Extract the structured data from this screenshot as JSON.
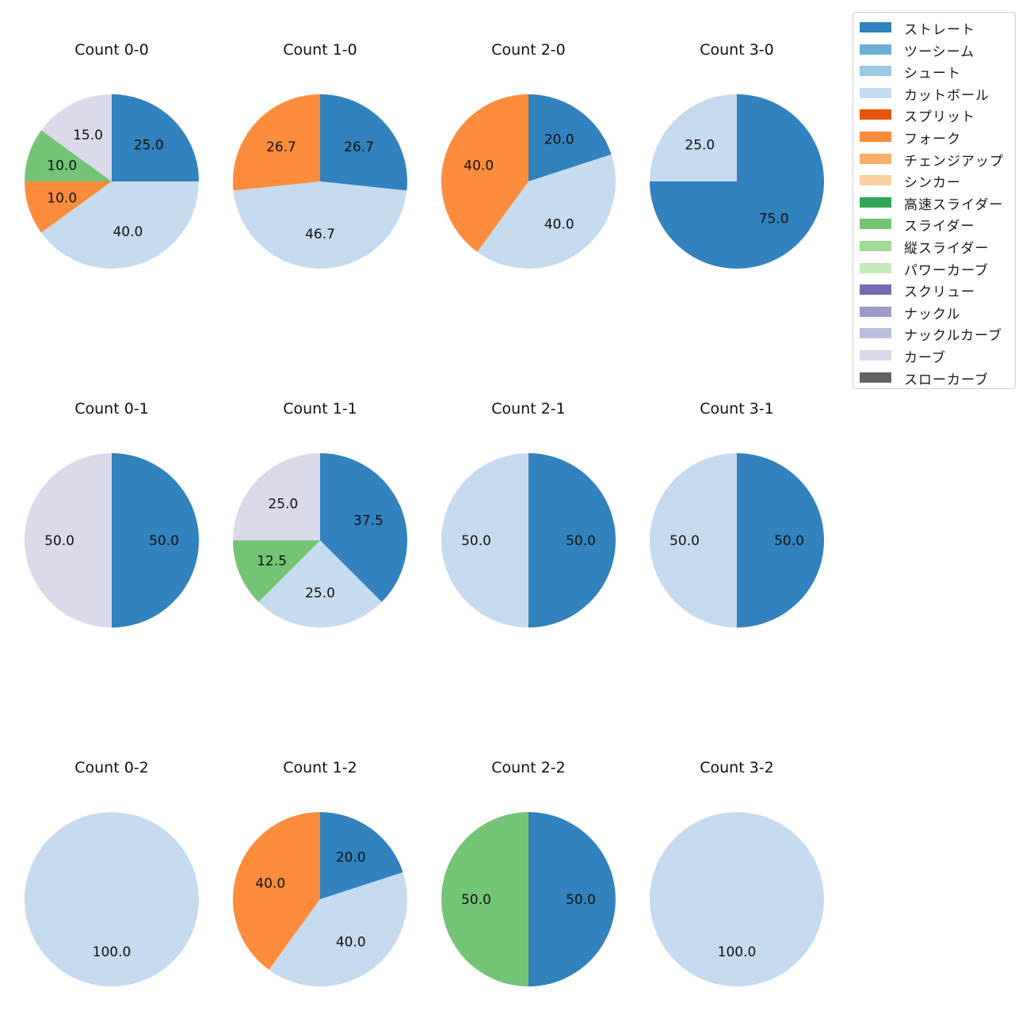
{
  "chart_data": {
    "type": "pie",
    "colors": {
      "ストレート": "#3182bd",
      "ツーシーム": "#6baed6",
      "シュート": "#9ecae1",
      "カットボール": "#c6dbef",
      "スプリット": "#e6550d",
      "フォーク": "#fd8d3c",
      "チェンジアップ": "#fdae6b",
      "シンカー": "#fdd0a2",
      "高速スライダー": "#31a354",
      "スライダー": "#74c476",
      "縦スライダー": "#a1d99b",
      "パワーカーブ": "#c7e9c0",
      "スクリュー": "#756bb1",
      "ナックル": "#9e9ac8",
      "ナックルカーブ": "#bcbddc",
      "カーブ": "#dadaeb",
      "スローカーブ": "#636363"
    },
    "legend": [
      "ストレート",
      "ツーシーム",
      "シュート",
      "カットボール",
      "スプリット",
      "フォーク",
      "チェンジアップ",
      "シンカー",
      "高速スライダー",
      "スライダー",
      "縦スライダー",
      "パワーカーブ",
      "スクリュー",
      "ナックル",
      "ナックルカーブ",
      "カーブ",
      "スローカーブ"
    ],
    "legend_position": "top-right",
    "pies": [
      {
        "title": "Count 0-0",
        "slices": [
          {
            "label": "ストレート",
            "value": 25.0,
            "text": "25.0"
          },
          {
            "label": "カットボール",
            "value": 40.0,
            "text": "40.0"
          },
          {
            "label": "フォーク",
            "value": 10.0,
            "text": "10.0"
          },
          {
            "label": "スライダー",
            "value": 10.0,
            "text": "10.0"
          },
          {
            "label": "カーブ",
            "value": 15.0,
            "text": "15.0"
          }
        ]
      },
      {
        "title": "Count 1-0",
        "slices": [
          {
            "label": "ストレート",
            "value": 26.7,
            "text": "26.7"
          },
          {
            "label": "カットボール",
            "value": 46.7,
            "text": "46.7"
          },
          {
            "label": "フォーク",
            "value": 26.7,
            "text": "26.7"
          }
        ]
      },
      {
        "title": "Count 2-0",
        "slices": [
          {
            "label": "ストレート",
            "value": 20.0,
            "text": "20.0"
          },
          {
            "label": "カットボール",
            "value": 40.0,
            "text": "40.0"
          },
          {
            "label": "フォーク",
            "value": 40.0,
            "text": "40.0"
          }
        ]
      },
      {
        "title": "Count 3-0",
        "slices": [
          {
            "label": "ストレート",
            "value": 75.0,
            "text": "75.0"
          },
          {
            "label": "カットボール",
            "value": 25.0,
            "text": "25.0"
          }
        ]
      },
      {
        "title": "Count 0-1",
        "slices": [
          {
            "label": "ストレート",
            "value": 50.0,
            "text": "50.0"
          },
          {
            "label": "カーブ",
            "value": 50.0,
            "text": "50.0"
          }
        ]
      },
      {
        "title": "Count 1-1",
        "slices": [
          {
            "label": "ストレート",
            "value": 37.5,
            "text": "37.5"
          },
          {
            "label": "カットボール",
            "value": 25.0,
            "text": "25.0"
          },
          {
            "label": "スライダー",
            "value": 12.5,
            "text": "12.5"
          },
          {
            "label": "カーブ",
            "value": 25.0,
            "text": "25.0"
          }
        ]
      },
      {
        "title": "Count 2-1",
        "slices": [
          {
            "label": "ストレート",
            "value": 50.0,
            "text": "50.0"
          },
          {
            "label": "カットボール",
            "value": 50.0,
            "text": "50.0"
          }
        ]
      },
      {
        "title": "Count 3-1",
        "slices": [
          {
            "label": "ストレート",
            "value": 50.0,
            "text": "50.0"
          },
          {
            "label": "カットボール",
            "value": 50.0,
            "text": "50.0"
          }
        ]
      },
      {
        "title": "Count 0-2",
        "slices": [
          {
            "label": "カットボール",
            "value": 100.0,
            "text": "100.0"
          }
        ]
      },
      {
        "title": "Count 1-2",
        "slices": [
          {
            "label": "ストレート",
            "value": 20.0,
            "text": "20.0"
          },
          {
            "label": "カットボール",
            "value": 40.0,
            "text": "40.0"
          },
          {
            "label": "フォーク",
            "value": 40.0,
            "text": "40.0"
          }
        ]
      },
      {
        "title": "Count 2-2",
        "slices": [
          {
            "label": "ストレート",
            "value": 50.0,
            "text": "50.0"
          },
          {
            "label": "スライダー",
            "value": 50.0,
            "text": "50.0"
          }
        ]
      },
      {
        "title": "Count 3-2",
        "slices": [
          {
            "label": "カットボール",
            "value": 100.0,
            "text": "100.0"
          }
        ]
      }
    ]
  }
}
